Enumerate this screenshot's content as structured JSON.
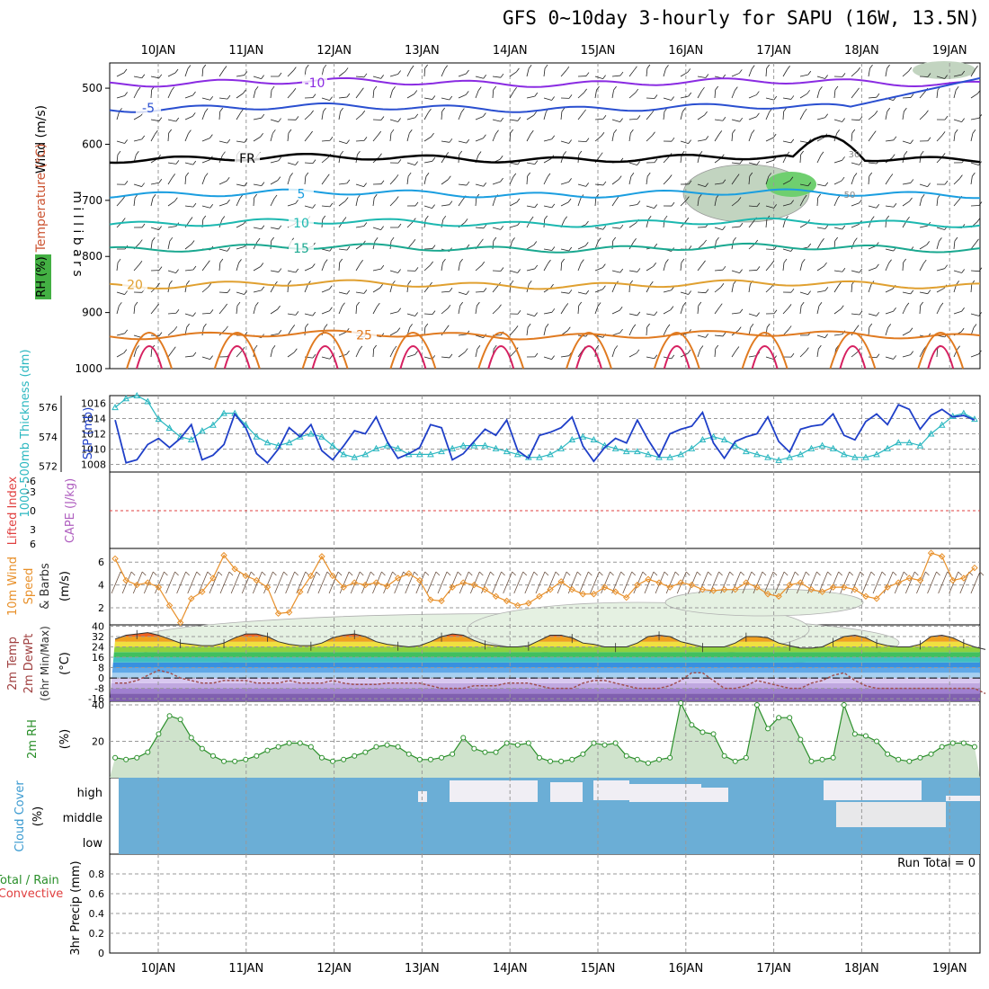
{
  "title": "GFS 0~10day 3-hourly for SAPU (16W, 13.5N)",
  "date_labels": [
    "10JAN",
    "11JAN",
    "12JAN",
    "13JAN",
    "14JAN",
    "15JAN",
    "16JAN",
    "17JAN",
    "18JAN",
    "19JAN"
  ],
  "colors": {
    "slp": "#1f3fc8",
    "thickness": "#2ab7c0",
    "wind": "#e8902a",
    "rh2m": "#2a8f2a",
    "rh2m_fill": "#cfe3cc",
    "cloud": "#6baed6",
    "cloud_clear": "#f0eef4",
    "dewpt": "#a05050"
  },
  "chart_data": [
    {
      "type": "line",
      "panel": "upper-air",
      "ylabel_parts": [
        "Wind (m/s)",
        "Temperature (°C)",
        "RH (%)"
      ],
      "yaxis_label": "m i l l i b a r s",
      "y_ticks": [
        500,
        600,
        700,
        800,
        900,
        1000
      ],
      "ylim": [
        455,
        1000
      ],
      "temperature_contours": [
        {
          "label": "-10",
          "pressure": 490
        },
        {
          "label": "-5",
          "pressure": 535
        },
        {
          "label": "FR",
          "pressure": 625
        },
        {
          "label": "5",
          "pressure": 688
        },
        {
          "label": "10",
          "pressure": 740
        },
        {
          "label": "15",
          "pressure": 785
        },
        {
          "label": "20",
          "pressure": 850
        },
        {
          "label": "25",
          "pressure": 940
        }
      ],
      "rh_labels": [
        "30",
        "50"
      ]
    },
    {
      "type": "line",
      "panel": "slp-thickness",
      "series": [
        {
          "name": "SLP (mb)",
          "axis": "right",
          "ylim": [
            1007,
            1017
          ],
          "ticks": [
            1008,
            1010,
            1012,
            1014,
            1016
          ],
          "values": [
            1013.8,
            1008.2,
            1008.6,
            1010.6,
            1011.4,
            1010.2,
            1011.4,
            1013.2,
            1008.6,
            1009.2,
            1010.6,
            1014.6,
            1012.8,
            1009.4,
            1008.2,
            1010.0,
            1012.8,
            1011.6,
            1013.2,
            1009.8,
            1008.6,
            1010.4,
            1012.4,
            1012.0,
            1014.2,
            1011.0,
            1008.8,
            1009.4,
            1010.2,
            1013.2,
            1012.8,
            1008.6,
            1009.4,
            1011.0,
            1012.6,
            1011.8,
            1013.8,
            1009.8,
            1008.8,
            1011.8,
            1012.2,
            1012.8,
            1014.2,
            1010.4,
            1008.4,
            1010.2,
            1011.4,
            1010.8,
            1013.8,
            1011.2,
            1009.0,
            1012.0,
            1012.6,
            1013.0,
            1014.8,
            1010.8,
            1008.8,
            1011.0,
            1011.6,
            1012.0,
            1014.2,
            1011.0,
            1009.6,
            1012.6,
            1013.0,
            1013.2,
            1014.6,
            1011.8,
            1011.2,
            1013.6,
            1014.6,
            1013.2,
            1015.8,
            1015.2,
            1012.6,
            1014.4,
            1015.2,
            1014.2,
            1014.4,
            1013.8
          ]
        },
        {
          "name": "1000-500mb Thickness (dm)",
          "axis": "left",
          "ylim": [
            571.6,
            576.8
          ],
          "ticks": [
            572,
            574,
            576
          ],
          "values": [
            576.0,
            576.6,
            576.8,
            576.4,
            575.2,
            574.6,
            574.0,
            573.8,
            574.4,
            574.8,
            575.6,
            575.6,
            574.8,
            574.0,
            573.6,
            573.4,
            573.6,
            574.0,
            574.2,
            574.0,
            573.4,
            572.8,
            572.6,
            572.8,
            573.2,
            573.4,
            573.2,
            572.8,
            572.8,
            572.8,
            573.0,
            573.2,
            573.4,
            573.4,
            573.4,
            573.2,
            573.0,
            572.8,
            572.6,
            572.6,
            572.8,
            573.2,
            573.8,
            574.0,
            573.8,
            573.4,
            573.2,
            573.0,
            573.0,
            572.8,
            572.6,
            572.6,
            572.8,
            573.2,
            573.8,
            574.0,
            573.8,
            573.4,
            573.0,
            572.8,
            572.6,
            572.4,
            572.6,
            572.8,
            573.2,
            573.4,
            573.2,
            572.8,
            572.6,
            572.6,
            572.8,
            573.2,
            573.6,
            573.6,
            573.4,
            574.2,
            574.8,
            575.4,
            575.6,
            575.2
          ]
        }
      ]
    },
    {
      "type": "line",
      "panel": "stability",
      "ylabel_left": "Lifted Index",
      "ylabel_right": "CAPE (J/kg)",
      "yticks": [
        "-6",
        "-3",
        "0",
        "3",
        "6"
      ],
      "values": []
    },
    {
      "type": "line",
      "panel": "10m-wind",
      "ylabel_parts": [
        "10m Wind",
        "Speed",
        "& Barbs"
      ],
      "unit": "(m/s)",
      "ylim": [
        0.5,
        7.2
      ],
      "ticks": [
        2,
        4,
        6
      ],
      "values": [
        6.3,
        4.4,
        4.0,
        4.2,
        3.8,
        2.2,
        0.7,
        2.8,
        3.4,
        4.6,
        6.6,
        5.4,
        4.8,
        4.4,
        3.8,
        1.5,
        1.6,
        3.4,
        4.8,
        6.5,
        4.8,
        3.8,
        4.2,
        4.0,
        4.2,
        3.9,
        4.6,
        5.0,
        4.4,
        2.7,
        2.6,
        3.8,
        4.2,
        4.0,
        3.6,
        3.0,
        2.6,
        2.2,
        2.4,
        3.0,
        3.6,
        4.3,
        3.6,
        3.2,
        3.2,
        3.8,
        3.4,
        2.9,
        4.0,
        4.5,
        4.2,
        3.8,
        4.2,
        4.0,
        3.6,
        3.5,
        3.6,
        3.6,
        4.2,
        3.8,
        3.2,
        3.0,
        4.0,
        4.2,
        3.6,
        3.4,
        3.8,
        3.8,
        3.6,
        3.0,
        2.8,
        3.8,
        4.2,
        4.6,
        4.4,
        6.8,
        6.5,
        4.4,
        4.6,
        5.5
      ]
    },
    {
      "type": "area",
      "panel": "2m-temp",
      "ylabel_parts": [
        "2m Temp",
        "2m DewPt",
        "(6hr Min/Max)"
      ],
      "unit": "(°C)",
      "ticks": [
        "-16",
        "-8",
        "0",
        "8",
        "16",
        "24",
        "32",
        "40"
      ],
      "ylim": [
        -18,
        41
      ],
      "temp": [
        30,
        33,
        34,
        35,
        33,
        30,
        27,
        26,
        25,
        25,
        27,
        31,
        34,
        34,
        32,
        28,
        26,
        25,
        25,
        27,
        31,
        33,
        34,
        32,
        28,
        26,
        25,
        24,
        25,
        28,
        32,
        34,
        33,
        29,
        26,
        25,
        24,
        24,
        25,
        29,
        33,
        33,
        31,
        27,
        26,
        24,
        24,
        24,
        27,
        32,
        33,
        32,
        28,
        26,
        24,
        24,
        24,
        27,
        32,
        32,
        31,
        27,
        25,
        23,
        23,
        24,
        28,
        32,
        33,
        31,
        27,
        25,
        24,
        24,
        26,
        32,
        33,
        31,
        27,
        24,
        22
      ],
      "dewpt": [
        -4,
        -4,
        -2,
        2,
        6,
        4,
        0,
        -2,
        -4,
        -4,
        -2,
        -2,
        -2,
        -4,
        -4,
        -4,
        -2,
        -4,
        -4,
        -4,
        -2,
        -4,
        -5,
        -5,
        -5,
        -4,
        -4,
        -4,
        -4,
        -6,
        -8,
        -8,
        -8,
        -6,
        -6,
        -6,
        -4,
        -4,
        -4,
        -6,
        -8,
        -8,
        -8,
        -4,
        -2,
        -2,
        -4,
        -6,
        -8,
        -8,
        -8,
        -6,
        -2,
        4,
        4,
        -2,
        -8,
        -8,
        -6,
        -2,
        -4,
        -6,
        -8,
        -8,
        -4,
        -2,
        2,
        4,
        -2,
        -6,
        -8,
        -8,
        -8,
        -8,
        -8,
        -8,
        -8,
        -8,
        -8,
        -8,
        -12
      ]
    },
    {
      "type": "area",
      "panel": "2m-rh",
      "ylabel": "2m RH",
      "unit": "(%)",
      "ticks": [
        20,
        40
      ],
      "ylim": [
        0,
        42
      ],
      "values": [
        11,
        10,
        11,
        14,
        24,
        34,
        32,
        22,
        16,
        12,
        9,
        9,
        10,
        12,
        15,
        17,
        19,
        19,
        17,
        11,
        9,
        10,
        12,
        14,
        17,
        18,
        17,
        13,
        10,
        10,
        11,
        13,
        22,
        16,
        14,
        14,
        19,
        18,
        19,
        11,
        9,
        9,
        10,
        13,
        19,
        18,
        19,
        12,
        10,
        8,
        10,
        11,
        41,
        29,
        25,
        24,
        12,
        9,
        11,
        40,
        27,
        33,
        33,
        21,
        9,
        10,
        11,
        40,
        24,
        23,
        20,
        13,
        10,
        9,
        11,
        13,
        17,
        19,
        19,
        17,
        13,
        11,
        12,
        15,
        14,
        10
      ]
    },
    {
      "type": "heatmap",
      "panel": "cloud-cover",
      "ylabel": "Cloud Cover",
      "unit": "(%)",
      "levels": [
        "high",
        "middle",
        "low"
      ]
    },
    {
      "type": "bar",
      "panel": "precip",
      "ylabel_left": "Total / Rain",
      "ylabel_left2": "Convective",
      "ylabel": "3hr Precip (mm)",
      "ticks": [
        "0",
        "0.2",
        "0.4",
        "0.6",
        "0.8"
      ],
      "ylim": [
        0,
        1
      ],
      "run_total": "Run Total = 0",
      "values": []
    }
  ]
}
